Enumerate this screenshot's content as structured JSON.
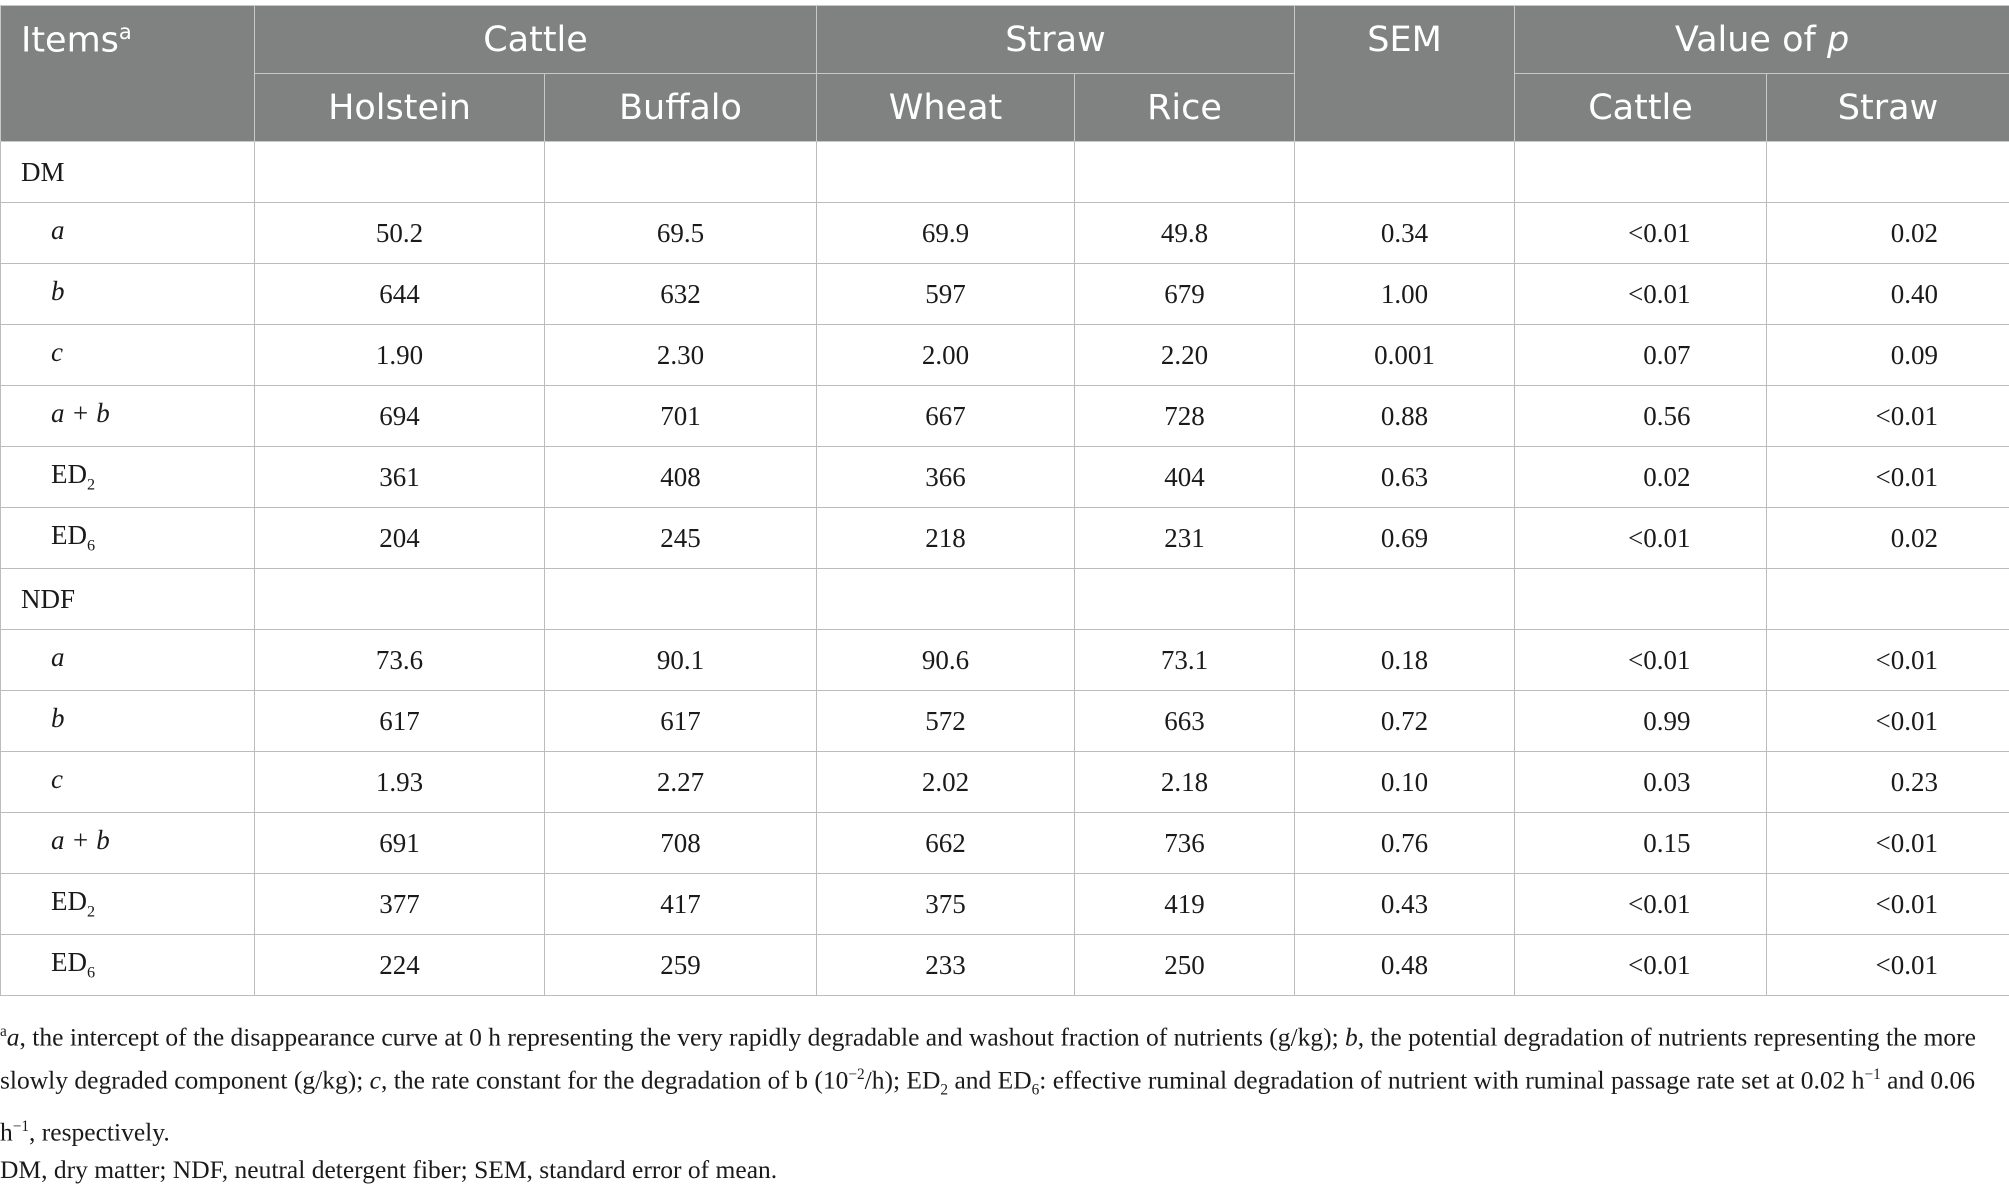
{
  "table": {
    "header": {
      "items": "Items",
      "items_sup": "a",
      "cattle": "Cattle",
      "straw": "Straw",
      "sem": "SEM",
      "value_of_p_prefix": "Value of ",
      "value_of_p_italic": "p",
      "holstein": "Holstein",
      "buffalo": "Buffalo",
      "wheat": "Wheat",
      "rice": "Rice",
      "p_cattle": "Cattle",
      "p_straw": "Straw"
    },
    "dm": {
      "label": "DM",
      "rows": [
        {
          "label": "a",
          "label_sub": "",
          "holstein": "50.2",
          "buffalo": "69.5",
          "wheat": "69.9",
          "rice": "49.8",
          "sem": "0.34",
          "p_cattle": "<0.01",
          "p_straw": "0.02"
        },
        {
          "label": "b",
          "label_sub": "",
          "holstein": "644",
          "buffalo": "632",
          "wheat": "597",
          "rice": "679",
          "sem": "1.00",
          "p_cattle": "<0.01",
          "p_straw": "0.40"
        },
        {
          "label": "c",
          "label_sub": "",
          "holstein": "1.90",
          "buffalo": "2.30",
          "wheat": "2.00",
          "rice": "2.20",
          "sem": "0.001",
          "p_cattle": "0.07",
          "p_straw": "0.09"
        },
        {
          "label": "a + b",
          "label_sub": "",
          "holstein": "694",
          "buffalo": "701",
          "wheat": "667",
          "rice": "728",
          "sem": "0.88",
          "p_cattle": "0.56",
          "p_straw": "<0.01"
        },
        {
          "label": "ED",
          "label_sub": "2",
          "holstein": "361",
          "buffalo": "408",
          "wheat": "366",
          "rice": "404",
          "sem": "0.63",
          "p_cattle": "0.02",
          "p_straw": "<0.01"
        },
        {
          "label": "ED",
          "label_sub": "6",
          "holstein": "204",
          "buffalo": "245",
          "wheat": "218",
          "rice": "231",
          "sem": "0.69",
          "p_cattle": "<0.01",
          "p_straw": "0.02"
        }
      ]
    },
    "ndf": {
      "label": "NDF",
      "rows": [
        {
          "label": "a",
          "label_sub": "",
          "holstein": "73.6",
          "buffalo": "90.1",
          "wheat": "90.6",
          "rice": "73.1",
          "sem": "0.18",
          "p_cattle": "<0.01",
          "p_straw": "<0.01"
        },
        {
          "label": "b",
          "label_sub": "",
          "holstein": "617",
          "buffalo": "617",
          "wheat": "572",
          "rice": "663",
          "sem": "0.72",
          "p_cattle": "0.99",
          "p_straw": "<0.01"
        },
        {
          "label": "c",
          "label_sub": "",
          "holstein": "1.93",
          "buffalo": "2.27",
          "wheat": "2.02",
          "rice": "2.18",
          "sem": "0.10",
          "p_cattle": "0.03",
          "p_straw": "0.23"
        },
        {
          "label": "a + b",
          "label_sub": "",
          "holstein": "691",
          "buffalo": "708",
          "wheat": "662",
          "rice": "736",
          "sem": "0.76",
          "p_cattle": "0.15",
          "p_straw": "<0.01"
        },
        {
          "label": "ED",
          "label_sub": "2",
          "holstein": "377",
          "buffalo": "417",
          "wheat": "375",
          "rice": "419",
          "sem": "0.43",
          "p_cattle": "<0.01",
          "p_straw": "<0.01"
        },
        {
          "label": "ED",
          "label_sub": "6",
          "holstein": "224",
          "buffalo": "259",
          "wheat": "233",
          "rice": "250",
          "sem": "0.48",
          "p_cattle": "<0.01",
          "p_straw": "<0.01"
        }
      ]
    }
  },
  "footnote": {
    "line1": {
      "sup": "a",
      "a": "a",
      "t1": ", the intercept of the disappearance curve at 0 h representing the very rapidly degradable and washout fraction of nutrients (g/kg); ",
      "b": "b",
      "t2": ", the potential degradation of nutrients representing the more slowly degraded component (g/kg); ",
      "c": "c",
      "t3": ", the rate constant for the degradation of b (10",
      "exp1": "−2",
      "t4": "/h); ED",
      "sub2": "2",
      "t5": " and ED",
      "sub6": "6",
      "t6": ": effective ruminal degradation of nutrient with ruminal passage rate set at 0.02 h",
      "exp2": "−1",
      "t7": " and 0.06 h",
      "exp3": "−1",
      "t8": ", respectively."
    },
    "line2": "DM, dry matter; NDF, neutral detergent fiber; SEM, standard error of mean."
  }
}
